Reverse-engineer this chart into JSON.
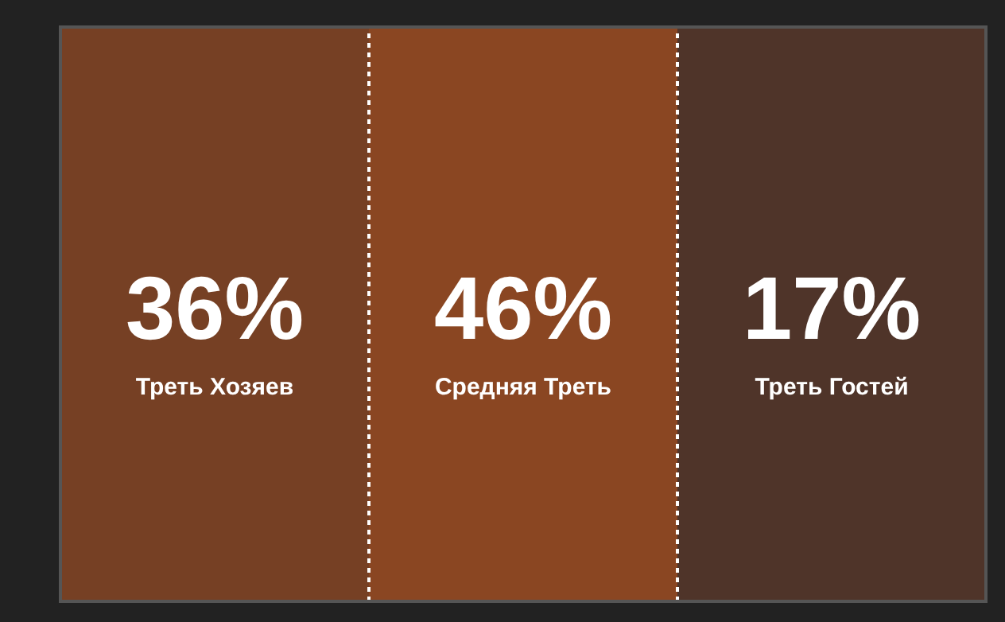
{
  "chart_data": {
    "type": "other",
    "categories": [
      "Треть Хозяев",
      "Средняя Треть",
      "Треть Гостей"
    ],
    "values": [
      36,
      46,
      17
    ],
    "value_labels": [
      "36%",
      "46%",
      "17%"
    ]
  }
}
